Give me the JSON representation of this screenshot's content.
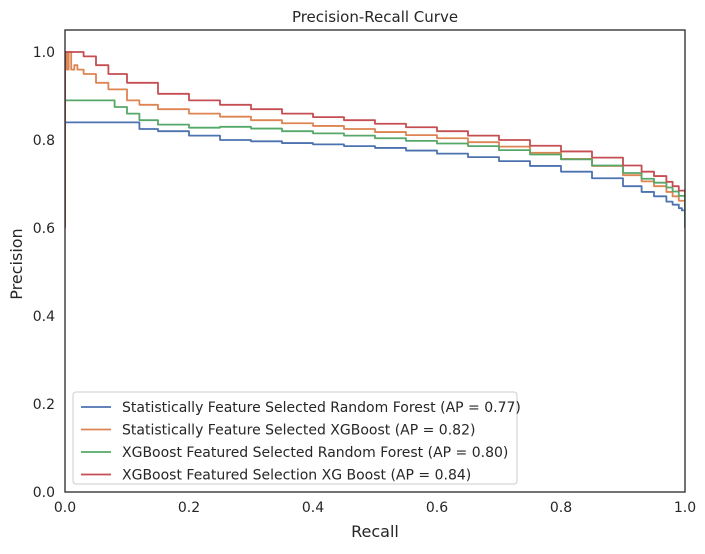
{
  "chart_data": {
    "type": "line",
    "title": "Precision-Recall Curve",
    "xlabel": "Recall",
    "ylabel": "Precision",
    "xlim": [
      0.0,
      1.0
    ],
    "ylim": [
      0.0,
      1.05
    ],
    "xticks": [
      0.0,
      0.2,
      0.4,
      0.6,
      0.8,
      1.0
    ],
    "xtick_labels": [
      "0.0",
      "0.2",
      "0.4",
      "0.6",
      "0.8",
      "1.0"
    ],
    "yticks": [
      0.0,
      0.2,
      0.4,
      0.6,
      0.8,
      1.0
    ],
    "ytick_labels": [
      "0.0",
      "0.2",
      "0.4",
      "0.6",
      "0.8",
      "1.0"
    ],
    "grid": false,
    "legend_position": "lower-left",
    "series": [
      {
        "name": "Statistically Feature Selected Random Forest (AP = 0.77)",
        "color": "#4c72b0",
        "x": [
          0,
          0,
          0.01,
          0.05,
          0.1,
          0.12,
          0.15,
          0.2,
          0.25,
          0.3,
          0.35,
          0.4,
          0.45,
          0.5,
          0.55,
          0.6,
          0.65,
          0.7,
          0.75,
          0.8,
          0.85,
          0.9,
          0.93,
          0.95,
          0.97,
          0.98,
          0.99,
          0.995,
          1.0
        ],
        "y": [
          0.6,
          0.84,
          0.84,
          0.84,
          0.84,
          0.825,
          0.82,
          0.81,
          0.8,
          0.797,
          0.793,
          0.79,
          0.786,
          0.782,
          0.776,
          0.769,
          0.761,
          0.752,
          0.741,
          0.728,
          0.713,
          0.695,
          0.682,
          0.672,
          0.66,
          0.653,
          0.645,
          0.64,
          0.6
        ]
      },
      {
        "name": "Statistically Feature Selected XGBoost (AP = 0.82)",
        "color": "#dd8452",
        "x": [
          0,
          0,
          0.003,
          0.006,
          0.01,
          0.015,
          0.02,
          0.03,
          0.05,
          0.07,
          0.1,
          0.12,
          0.15,
          0.2,
          0.25,
          0.3,
          0.35,
          0.4,
          0.45,
          0.5,
          0.55,
          0.6,
          0.65,
          0.7,
          0.75,
          0.8,
          0.85,
          0.9,
          0.93,
          0.95,
          0.97,
          0.98,
          0.99,
          1.0
        ],
        "y": [
          0.6,
          1.0,
          0.96,
          1.0,
          0.96,
          0.97,
          0.96,
          0.95,
          0.93,
          0.915,
          0.89,
          0.88,
          0.87,
          0.86,
          0.853,
          0.845,
          0.838,
          0.832,
          0.825,
          0.818,
          0.811,
          0.804,
          0.795,
          0.785,
          0.771,
          0.757,
          0.741,
          0.72,
          0.706,
          0.695,
          0.682,
          0.672,
          0.662,
          0.64
        ]
      },
      {
        "name": "XGBoost Featured Selected Random Forest (AP = 0.80)",
        "color": "#55a868",
        "x": [
          0,
          0,
          0.01,
          0.05,
          0.07,
          0.08,
          0.1,
          0.12,
          0.15,
          0.2,
          0.25,
          0.3,
          0.35,
          0.4,
          0.45,
          0.5,
          0.55,
          0.6,
          0.65,
          0.7,
          0.75,
          0.8,
          0.85,
          0.9,
          0.93,
          0.95,
          0.97,
          0.98,
          0.99,
          1.0
        ],
        "y": [
          0.6,
          0.89,
          0.89,
          0.89,
          0.89,
          0.875,
          0.86,
          0.845,
          0.835,
          0.828,
          0.83,
          0.826,
          0.82,
          0.815,
          0.81,
          0.804,
          0.798,
          0.792,
          0.786,
          0.777,
          0.767,
          0.756,
          0.742,
          0.725,
          0.712,
          0.703,
          0.692,
          0.683,
          0.673,
          0.62
        ]
      },
      {
        "name": "XGBoost Featured Selection XG Boost (AP = 0.84)",
        "color": "#c44e52",
        "x": [
          0,
          0,
          0.01,
          0.03,
          0.05,
          0.07,
          0.1,
          0.15,
          0.2,
          0.25,
          0.3,
          0.35,
          0.4,
          0.45,
          0.5,
          0.55,
          0.6,
          0.65,
          0.7,
          0.75,
          0.8,
          0.85,
          0.9,
          0.93,
          0.95,
          0.97,
          0.98,
          0.99,
          1.0
        ],
        "y": [
          0.6,
          1.0,
          1.0,
          0.99,
          0.97,
          0.95,
          0.93,
          0.905,
          0.89,
          0.88,
          0.87,
          0.86,
          0.852,
          0.845,
          0.837,
          0.829,
          0.82,
          0.81,
          0.8,
          0.787,
          0.774,
          0.76,
          0.742,
          0.728,
          0.718,
          0.705,
          0.695,
          0.685,
          0.67
        ]
      }
    ]
  }
}
